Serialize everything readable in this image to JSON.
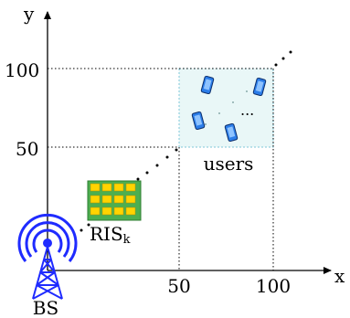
{
  "axes": {
    "x_label": "x",
    "y_label": "y",
    "x_ticks": [
      "50",
      "100"
    ],
    "y_ticks": [
      "50",
      "100"
    ]
  },
  "users_region": {
    "label": "users",
    "ellipsis": "...",
    "fill": "#e9f7f7",
    "border": "#7fc7d9"
  },
  "ris": {
    "label": "RIS",
    "subscript": "k",
    "panel_fill": "#4caf50",
    "element_fill": "#ffd400"
  },
  "bs": {
    "label": "BS",
    "color": "#1f2bff"
  },
  "phone_color": "#2b7de9"
}
